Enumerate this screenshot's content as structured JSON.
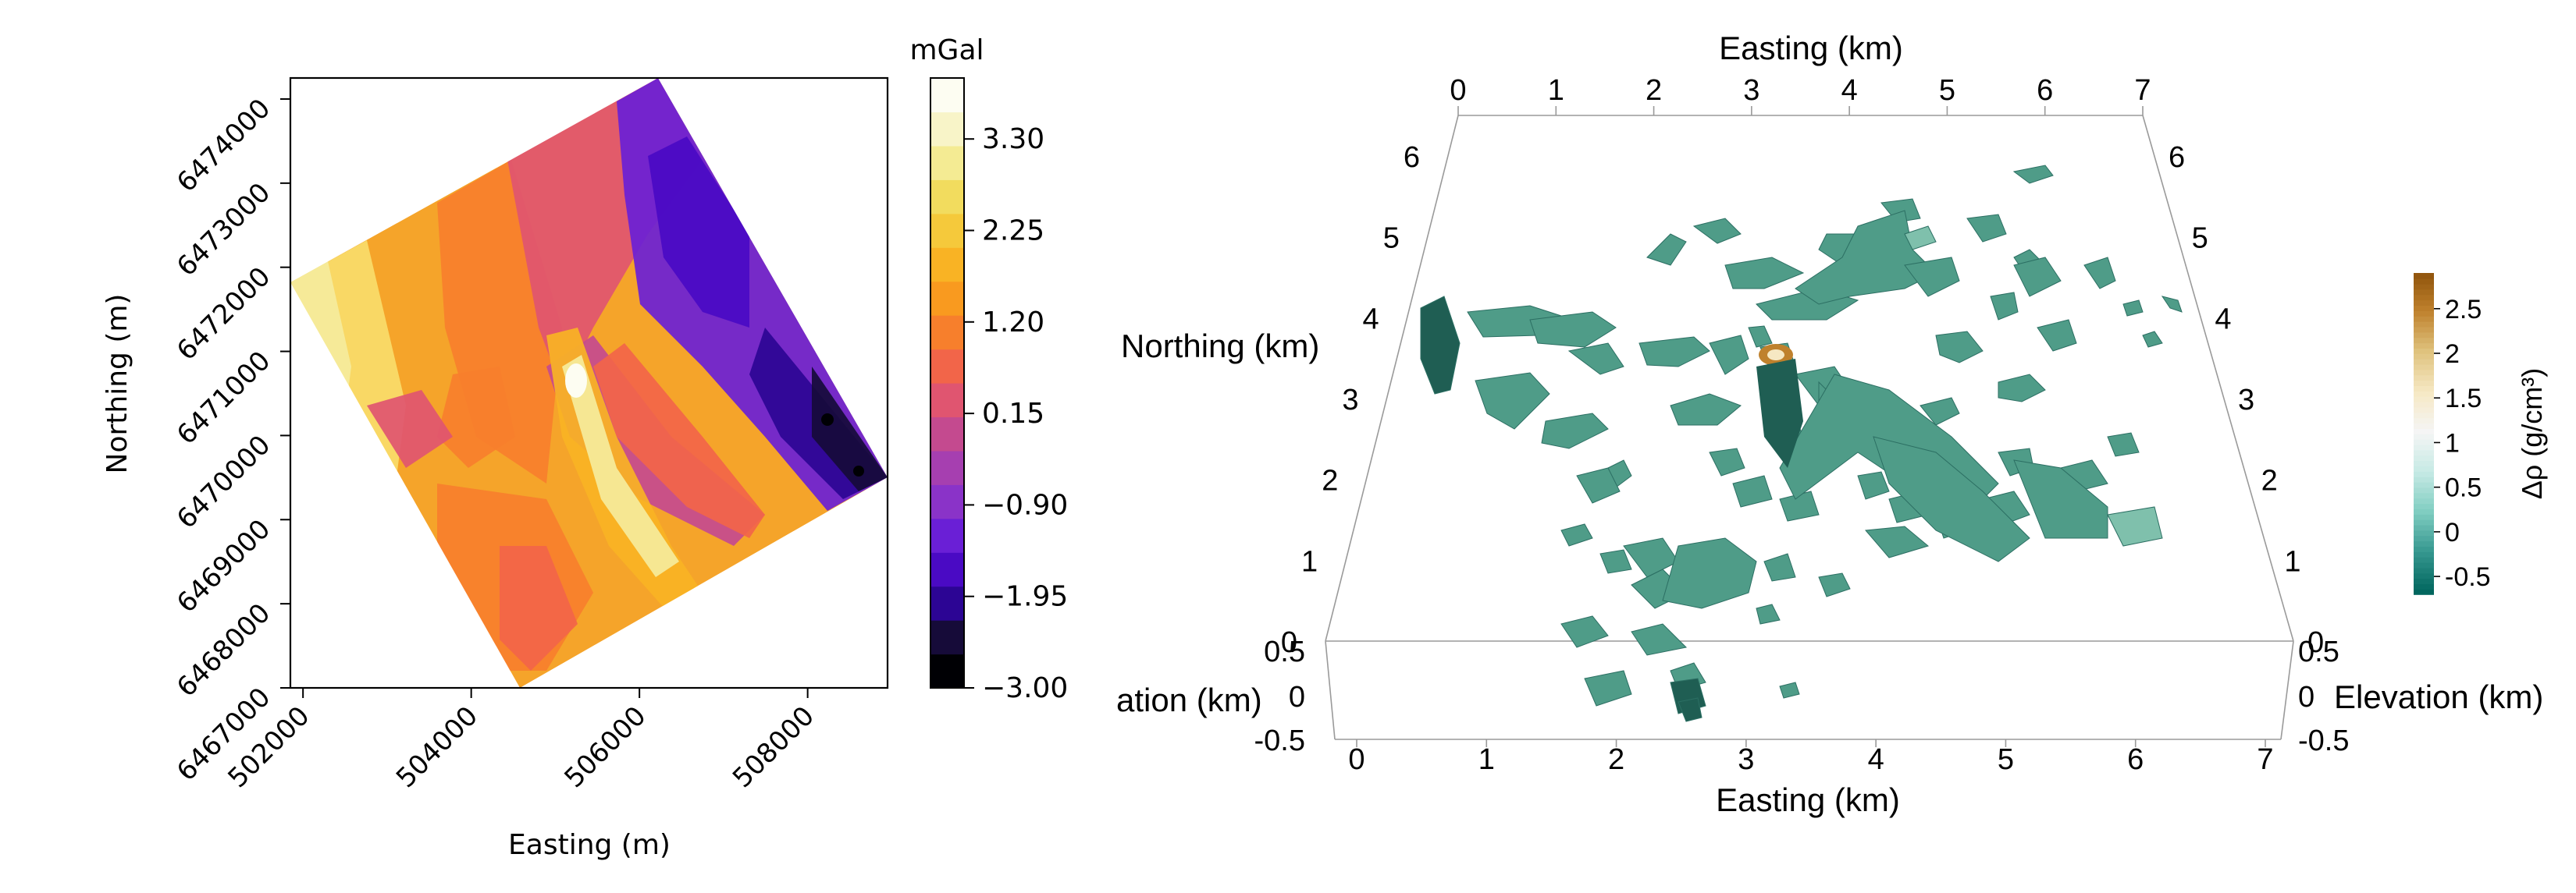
{
  "chart_data": [
    {
      "type": "heatmap",
      "xlabel": "Easting (m)",
      "ylabel": "Northing (m)",
      "xticks": [
        "502000",
        "504000",
        "506000",
        "508000"
      ],
      "yticks": [
        "6467000",
        "6468000",
        "6469000",
        "6470000",
        "6471000",
        "6472000",
        "6473000",
        "6474000"
      ],
      "xlim": [
        501850,
        508950
      ],
      "ylim": [
        6467000,
        6474250
      ],
      "colorbar": {
        "label": "mGal",
        "ticks": [
          "3.30",
          "2.25",
          "1.20",
          "0.15",
          "−0.90",
          "−1.95",
          "−3.00"
        ],
        "range": [
          -3.0,
          4.0
        ],
        "colors": [
          "#000004",
          "#160b39",
          "#2c0594",
          "#4a0ac4",
          "#6a1fd6",
          "#8a33c8",
          "#a63fb0",
          "#c44a8f",
          "#e05570",
          "#f26549",
          "#f77f2c",
          "#f99a1f",
          "#f9b324",
          "#f5c93b",
          "#f2dc5e",
          "#f4eb93",
          "#f8f4c8",
          "#fdfdf2"
        ]
      }
    },
    {
      "type": "other",
      "axes": {
        "top_label": "Easting (km)",
        "bottom_label": "Easting (km)",
        "left_label": "Northing (km)",
        "left_elev_label": "ation (km)",
        "right_elev_label": "Elevation (km)",
        "easting_ticks": [
          "0",
          "1",
          "2",
          "3",
          "4",
          "5",
          "6",
          "7"
        ],
        "northing_ticks": [
          "0",
          "1",
          "2",
          "3",
          "4",
          "5",
          "6"
        ],
        "elev_ticks": [
          "0.5",
          "0",
          "-0.5"
        ]
      },
      "colorbar": {
        "label": "Δρ (g/cm³)",
        "ticks": [
          "2.5",
          "2",
          "1.5",
          "1",
          "0.5",
          "0",
          "-0.5"
        ],
        "range": [
          -0.7,
          2.9
        ],
        "colors": [
          "#01665e",
          "#35978f",
          "#80cdc1",
          "#c7eae5",
          "#f5f5f5",
          "#f6e8c3",
          "#dfc27d",
          "#bf812d",
          "#8c510a"
        ]
      }
    }
  ]
}
